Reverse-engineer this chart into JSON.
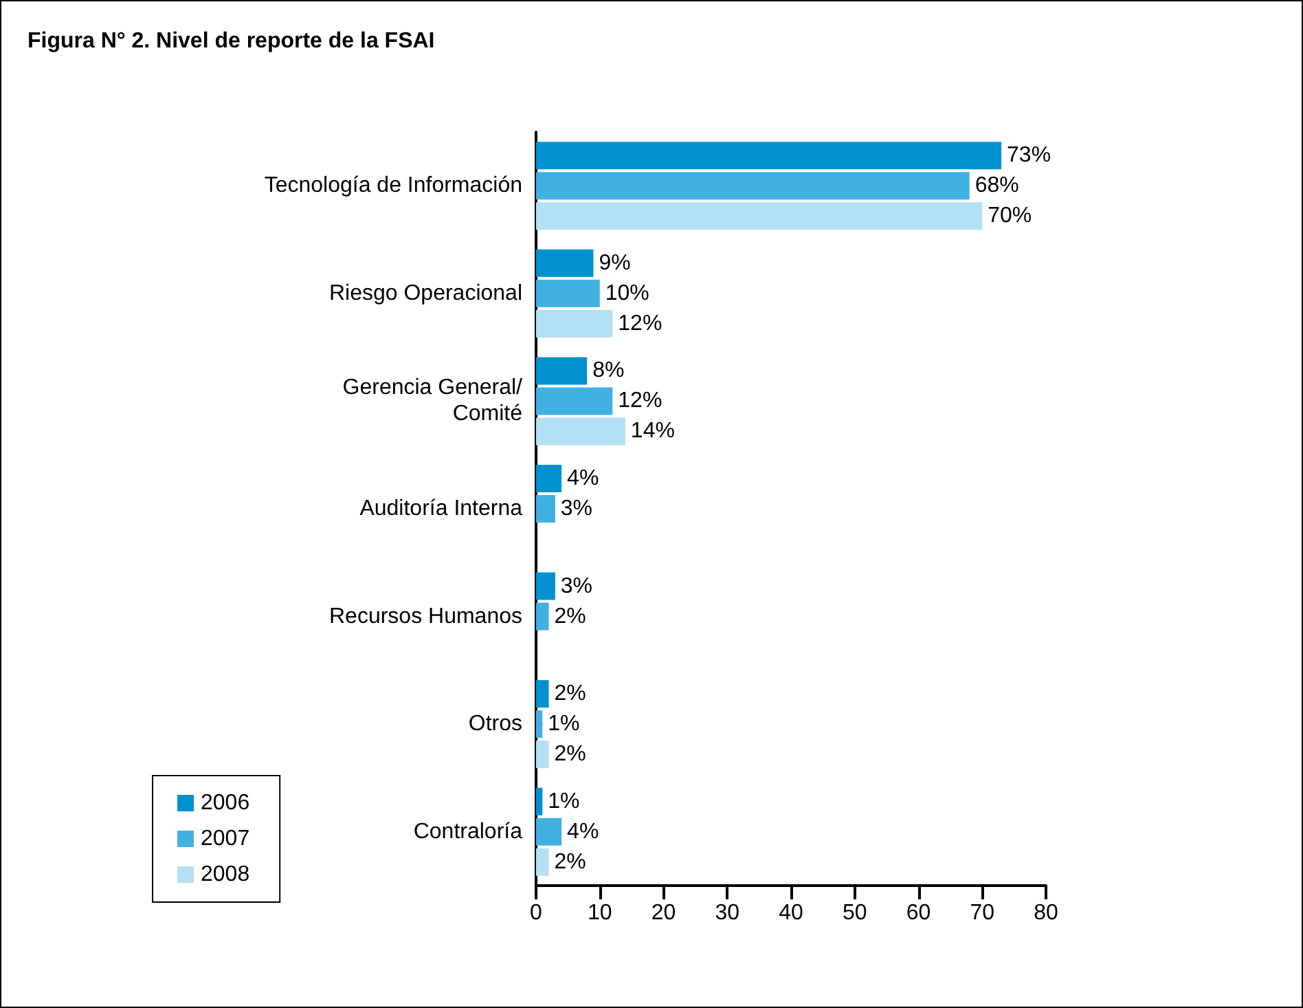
{
  "chart_data": {
    "type": "bar",
    "orientation": "horizontal",
    "title": "Figura N° 2. Nivel de reporte de la FSAI",
    "categories": [
      "Tecnología de Información",
      "Riesgo Operacional",
      "Gerencia General/\nComité",
      "Auditoría Interna",
      "Recursos Humanos",
      "Otros",
      "Contraloría"
    ],
    "series": [
      {
        "name": "2006",
        "color": "#0091d1",
        "values": [
          73,
          9,
          8,
          4,
          3,
          2,
          1
        ],
        "value_labels": [
          "73%",
          "9%",
          "8%",
          "4%",
          "3%",
          "2%",
          "1%"
        ]
      },
      {
        "name": "2007",
        "color": "#40b1e1",
        "values": [
          68,
          10,
          12,
          3,
          2,
          1,
          4
        ],
        "value_labels": [
          "68%",
          "10%",
          "12%",
          "3%",
          "2%",
          "1%",
          "4%"
        ]
      },
      {
        "name": "2008",
        "color": "#b4e0f4",
        "values": [
          70,
          12,
          14,
          null,
          null,
          2,
          2
        ],
        "value_labels": [
          "70%",
          "12%",
          "14%",
          null,
          null,
          "2%",
          "2%"
        ]
      }
    ],
    "xlim": [
      0,
      80
    ],
    "xticks": [
      0,
      10,
      20,
      30,
      40,
      50,
      60,
      70,
      80
    ],
    "grid": false,
    "legend": "bottom left"
  }
}
